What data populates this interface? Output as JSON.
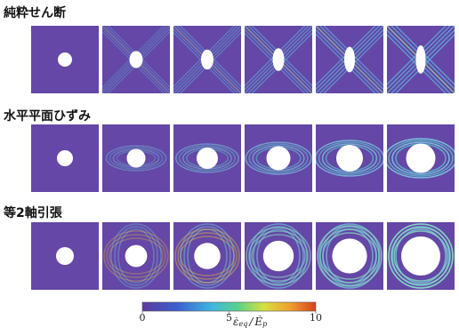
{
  "rows": [
    {
      "label": "純粋せん断"
    },
    {
      "label": "水平平面ひずみ"
    },
    {
      "label": "等2軸引張"
    }
  ],
  "colorbar": {
    "lim": [
      0,
      10
    ],
    "ticks": [
      0,
      5,
      10
    ],
    "label": {
      "numerator": "ε̇",
      "numerator_sub": "eq",
      "separator": "/",
      "denominator": "Ė",
      "denominator_sub": "p"
    }
  }
}
